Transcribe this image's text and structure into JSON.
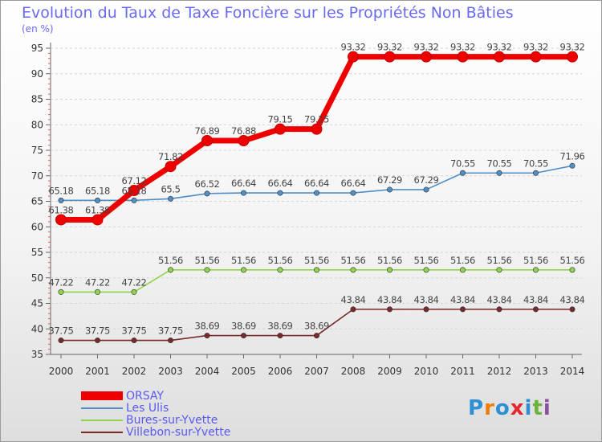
{
  "chart_data": {
    "type": "line",
    "title": "Evolution du Taux de Taxe Foncière sur les Propriétés Non Bâties",
    "ylabel": "(en %)",
    "xlabel": "",
    "ylim": [
      35,
      95
    ],
    "yticks": [
      35,
      40,
      45,
      50,
      55,
      60,
      65,
      70,
      75,
      80,
      85,
      90,
      95
    ],
    "categories": [
      "2000",
      "2001",
      "2002",
      "2003",
      "2004",
      "2005",
      "2006",
      "2007",
      "2008",
      "2009",
      "2010",
      "2011",
      "2012",
      "2013",
      "2014"
    ],
    "series": [
      {
        "name": "ORSAY",
        "color": "#ee0000",
        "values": [
          61.38,
          61.38,
          67.12,
          71.82,
          76.89,
          76.88,
          79.15,
          79.15,
          93.32,
          93.32,
          93.32,
          93.32,
          93.32,
          93.32,
          93.32
        ],
        "labels": [
          "61.38",
          "61.38",
          "67.12",
          "71.82",
          "76.89",
          "76.88",
          "79.15",
          "79.15",
          "93.32",
          "93.32",
          "93.32",
          "93.32",
          "93.32",
          "93.32",
          "93.32"
        ]
      },
      {
        "name": "Les Ulis",
        "color": "#4f8fc6",
        "values": [
          65.18,
          65.18,
          65.18,
          65.5,
          66.52,
          66.64,
          66.64,
          66.64,
          66.64,
          67.29,
          67.29,
          70.55,
          70.55,
          70.55,
          71.96
        ],
        "labels": [
          "65.18",
          "65.18",
          "65.18",
          "65.5",
          "66.52",
          "66.64",
          "66.64",
          "66.64",
          "66.64",
          "67.29",
          "67.29",
          "70.55",
          "70.55",
          "70.55",
          "71.96"
        ]
      },
      {
        "name": "Bures-sur-Yvette",
        "color": "#8fd44b",
        "values": [
          47.22,
          47.22,
          47.22,
          51.56,
          51.56,
          51.56,
          51.56,
          51.56,
          51.56,
          51.56,
          51.56,
          51.56,
          51.56,
          51.56,
          51.56
        ],
        "labels": [
          "47.22",
          "47.22",
          "47.22",
          "51.56",
          "51.56",
          "51.56",
          "51.56",
          "51.56",
          "51.56",
          "51.56",
          "51.56",
          "51.56",
          "51.56",
          "51.56",
          "51.56"
        ]
      },
      {
        "name": "Villebon-sur-Yvette",
        "color": "#7a2a2a",
        "values": [
          37.75,
          37.75,
          37.75,
          37.75,
          38.69,
          38.69,
          38.69,
          38.69,
          43.84,
          43.84,
          43.84,
          43.84,
          43.84,
          43.84,
          43.84
        ],
        "labels": [
          "37.75",
          "37.75",
          "37.75",
          "37.75",
          "38.69",
          "38.69",
          "38.69",
          "38.69",
          "43.84",
          "43.84",
          "43.84",
          "43.84",
          "43.84",
          "43.84",
          "43.84"
        ]
      }
    ],
    "legend": "bottom-left"
  },
  "brand": {
    "text": "Proxiti"
  }
}
